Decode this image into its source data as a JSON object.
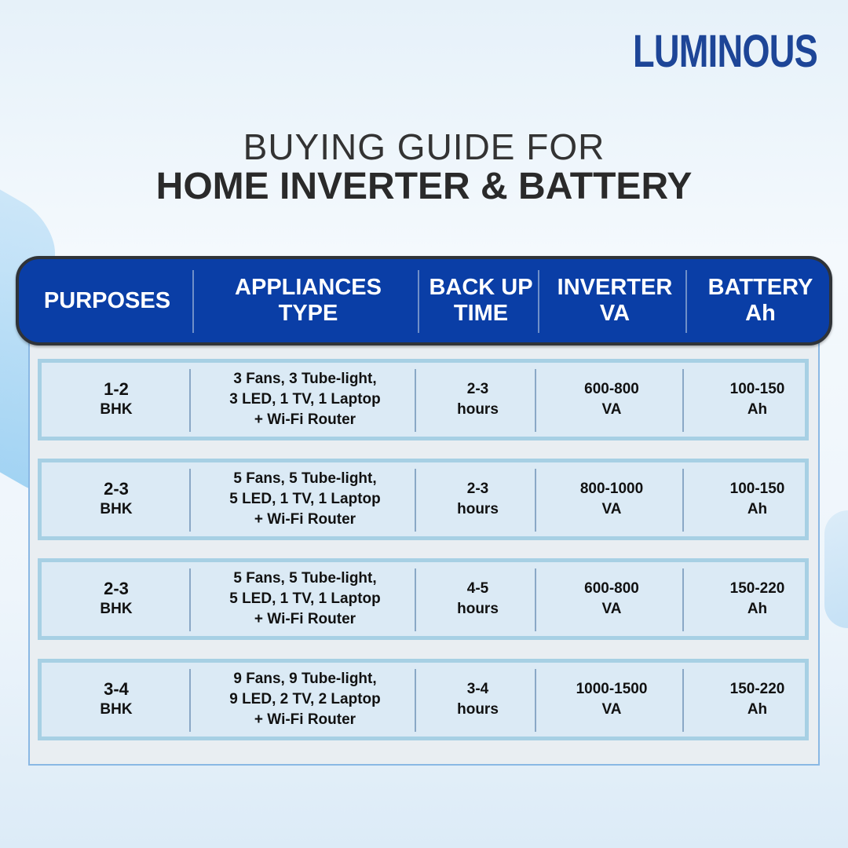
{
  "brand": {
    "logo": "LUMINOUS",
    "color": "#1d4597"
  },
  "title": {
    "line1": "BUYING GUIDE FOR",
    "line2": "HOME INVERTER & BATTERY"
  },
  "table": {
    "header_color": "#0a3ea6",
    "headers": [
      [
        "PURPOSES"
      ],
      [
        "APPLIANCES",
        "TYPE"
      ],
      [
        "BACK UP",
        "TIME"
      ],
      [
        "INVERTER",
        "VA"
      ],
      [
        "BATTERY",
        "Ah"
      ]
    ],
    "rows": [
      {
        "purpose": [
          "1-2",
          "BHK"
        ],
        "appliances": [
          "3 Fans, 3 Tube-light,",
          "3 LED, 1 TV, 1 Laptop",
          "+ Wi-Fi Router"
        ],
        "backup": [
          "2-3",
          "hours"
        ],
        "inverter": [
          "600-800",
          "VA"
        ],
        "battery": [
          "100-150",
          "Ah"
        ]
      },
      {
        "purpose": [
          "2-3",
          "BHK"
        ],
        "appliances": [
          "5 Fans, 5 Tube-light,",
          "5 LED, 1 TV, 1 Laptop",
          "+ Wi-Fi Router"
        ],
        "backup": [
          "2-3",
          "hours"
        ],
        "inverter": [
          "800-1000",
          "VA"
        ],
        "battery": [
          "100-150",
          "Ah"
        ]
      },
      {
        "purpose": [
          "2-3",
          "BHK"
        ],
        "appliances": [
          "5 Fans, 5 Tube-light,",
          "5 LED, 1 TV, 1 Laptop",
          "+ Wi-Fi Router"
        ],
        "backup": [
          "4-5",
          "hours"
        ],
        "inverter": [
          "600-800",
          "VA"
        ],
        "battery": [
          "150-220",
          "Ah"
        ]
      },
      {
        "purpose": [
          "3-4",
          "BHK"
        ],
        "appliances": [
          "9 Fans, 9 Tube-light,",
          "9 LED, 2 TV, 2 Laptop",
          "+ Wi-Fi Router"
        ],
        "backup": [
          "3-4",
          "hours"
        ],
        "inverter": [
          "1000-1500",
          "VA"
        ],
        "battery": [
          "150-220",
          "Ah"
        ]
      }
    ]
  }
}
